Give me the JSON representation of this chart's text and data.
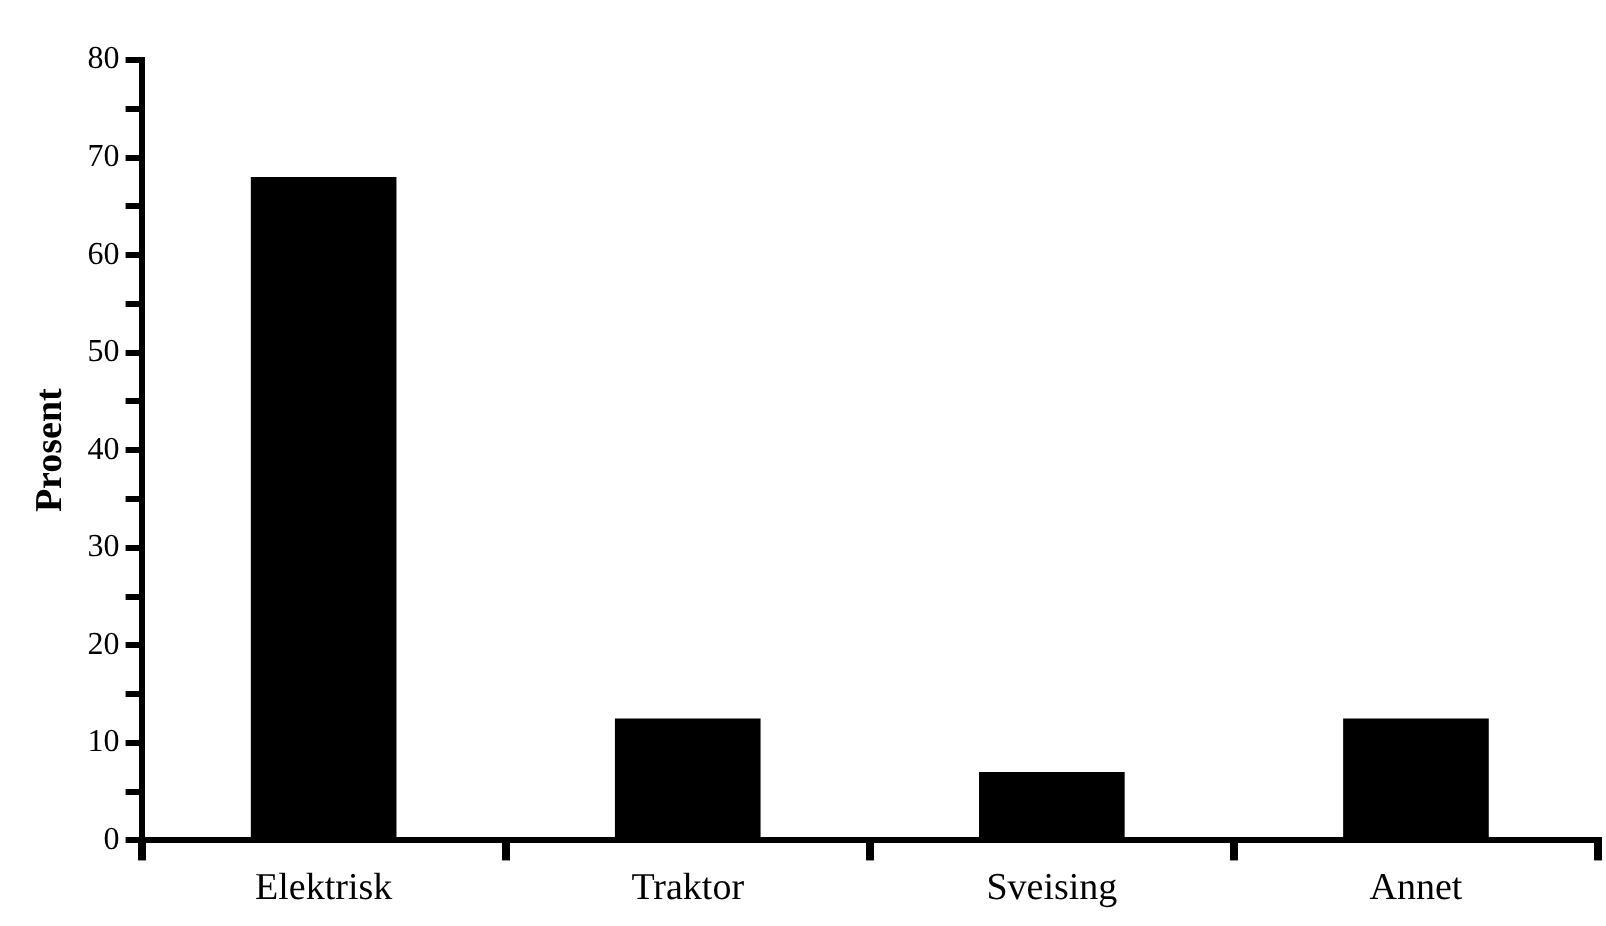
{
  "chart_data": {
    "type": "bar",
    "ylabel": "Prosent",
    "categories": [
      "Elektrisk",
      "Traktor",
      "Sveising",
      "Annet"
    ],
    "values": [
      68,
      12.5,
      7,
      12.5
    ],
    "color": "#000000",
    "ylim": [
      0,
      80
    ],
    "yticks": [
      0,
      {
        "value": 5,
        "label": null
      },
      10,
      {
        "value": 15,
        "label": null
      },
      20,
      {
        "value": 25,
        "label": null
      },
      30,
      {
        "value": 35,
        "label": null
      },
      40,
      {
        "value": 45,
        "label": null
      },
      50,
      {
        "value": 55,
        "label": null
      },
      60,
      {
        "value": 65,
        "label": null
      },
      70,
      {
        "value": 75,
        "label": null
      },
      80
    ],
    "grid": false,
    "legend": false
  }
}
